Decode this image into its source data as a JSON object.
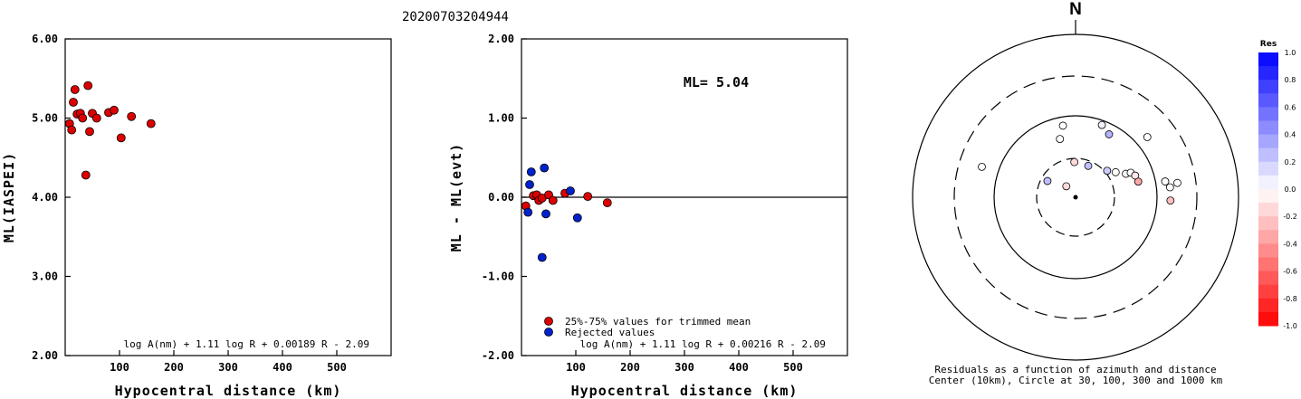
{
  "title": "20200703204944",
  "chart_data": [
    {
      "type": "scatter",
      "xlabel": "Hypocentral distance (km)",
      "ylabel": "ML(IASPEI)",
      "xlim": [
        0,
        600
      ],
      "ylim": [
        2.0,
        6.0
      ],
      "xticks": [
        "100",
        "200",
        "300",
        "400",
        "500"
      ],
      "yticks": [
        "2.00",
        "3.00",
        "4.00",
        "5.00",
        "6.00"
      ],
      "formula": "log A(nm) + 1.11 log R + 0.00189 R - 2.09",
      "color": "#dd0000",
      "points": [
        {
          "x": 8,
          "y": 4.93
        },
        {
          "x": 12,
          "y": 4.85
        },
        {
          "x": 15,
          "y": 5.2
        },
        {
          "x": 18,
          "y": 5.36
        },
        {
          "x": 22,
          "y": 5.05
        },
        {
          "x": 28,
          "y": 5.06
        },
        {
          "x": 32,
          "y": 5.0
        },
        {
          "x": 38,
          "y": 4.28
        },
        {
          "x": 42,
          "y": 5.41
        },
        {
          "x": 45,
          "y": 4.83
        },
        {
          "x": 50,
          "y": 5.06
        },
        {
          "x": 58,
          "y": 5.0
        },
        {
          "x": 80,
          "y": 5.07
        },
        {
          "x": 90,
          "y": 5.1
        },
        {
          "x": 103,
          "y": 4.75
        },
        {
          "x": 122,
          "y": 5.02
        },
        {
          "x": 158,
          "y": 4.93
        }
      ]
    },
    {
      "type": "scatter",
      "xlabel": "Hypocentral distance (km)",
      "ylabel": "ML - ML(evt)",
      "xlim": [
        0,
        600
      ],
      "ylim": [
        -2.0,
        2.0
      ],
      "xticks": [
        "100",
        "200",
        "300",
        "400",
        "500"
      ],
      "yticks": [
        "-2.00",
        "-1.00",
        "0.00",
        "1.00",
        "2.00"
      ],
      "ml_label": "ML= 5.04",
      "formula": "log A(nm) + 1.11 log R + 0.00216 R - 2.09",
      "legend": [
        {
          "label": "25%-75% values for trimmed mean",
          "color": "#dd0000"
        },
        {
          "label": "Rejected values",
          "color": "#0022cc"
        }
      ],
      "series": [
        {
          "name": "25%-75% values for trimmed mean",
          "color": "#dd0000",
          "points": [
            {
              "x": 8,
              "y": -0.11
            },
            {
              "x": 22,
              "y": 0.02
            },
            {
              "x": 28,
              "y": 0.03
            },
            {
              "x": 32,
              "y": -0.04
            },
            {
              "x": 38,
              "y": -0.01
            },
            {
              "x": 50,
              "y": 0.03
            },
            {
              "x": 58,
              "y": -0.04
            },
            {
              "x": 80,
              "y": 0.05
            },
            {
              "x": 122,
              "y": 0.01
            },
            {
              "x": 158,
              "y": -0.07
            }
          ]
        },
        {
          "name": "Rejected values",
          "color": "#0022cc",
          "points": [
            {
              "x": 12,
              "y": -0.19
            },
            {
              "x": 15,
              "y": 0.16
            },
            {
              "x": 18,
              "y": 0.32
            },
            {
              "x": 42,
              "y": 0.37
            },
            {
              "x": 45,
              "y": -0.21
            },
            {
              "x": 38,
              "y": -0.76
            },
            {
              "x": 90,
              "y": 0.08
            },
            {
              "x": 103,
              "y": -0.26
            }
          ]
        }
      ]
    },
    {
      "type": "scatter",
      "subtype": "polar",
      "north_label": "N",
      "caption_line1": "Residuals as a function of azimuth and distance",
      "caption_line2": "Center (10km), Circle at 30, 100, 300 and 1000 km",
      "colorbar_title": "Res",
      "colorbar_ticks": [
        "1.0",
        "0.8",
        "0.6",
        "0.4",
        "0.2",
        "0.0",
        "-0.2",
        "-0.4",
        "-0.6",
        "-0.8",
        "-1.0"
      ],
      "stations": [
        {
          "azimuth_deg": 288,
          "distance_km": 160,
          "residual": 0.0
        },
        {
          "azimuth_deg": 350,
          "distance_km": 78,
          "residual": 0.0
        },
        {
          "azimuth_deg": 345,
          "distance_km": 55,
          "residual": 0.0
        },
        {
          "azimuth_deg": 20,
          "distance_km": 88,
          "residual": 0.05
        },
        {
          "azimuth_deg": 28,
          "distance_km": 75,
          "residual": 0.3
        },
        {
          "azimuth_deg": 50,
          "distance_km": 140,
          "residual": 0.0
        },
        {
          "azimuth_deg": 358,
          "distance_km": 27,
          "residual": -0.15
        },
        {
          "azimuth_deg": 22,
          "distance_km": 26,
          "residual": 0.25
        },
        {
          "azimuth_deg": 50,
          "distance_km": 32,
          "residual": 0.2
        },
        {
          "azimuth_deg": 58,
          "distance_km": 38,
          "residual": 0.0
        },
        {
          "azimuth_deg": 65,
          "distance_km": 48,
          "residual": 0.0
        },
        {
          "azimuth_deg": 66,
          "distance_km": 55,
          "residual": 0.0
        },
        {
          "azimuth_deg": 70,
          "distance_km": 60,
          "residual": -0.1
        },
        {
          "azimuth_deg": 76,
          "distance_km": 62,
          "residual": -0.35
        },
        {
          "azimuth_deg": 80,
          "distance_km": 130,
          "residual": 0.0
        },
        {
          "azimuth_deg": 82,
          "distance_km": 180,
          "residual": 0.0
        },
        {
          "azimuth_deg": 84,
          "distance_km": 145,
          "residual": 0.0
        },
        {
          "azimuth_deg": 92,
          "distance_km": 145,
          "residual": -0.25
        },
        {
          "azimuth_deg": 300,
          "distance_km": 25,
          "residual": 0.25
        },
        {
          "azimuth_deg": 320,
          "distance_km": 15,
          "residual": -0.15
        }
      ]
    }
  ]
}
